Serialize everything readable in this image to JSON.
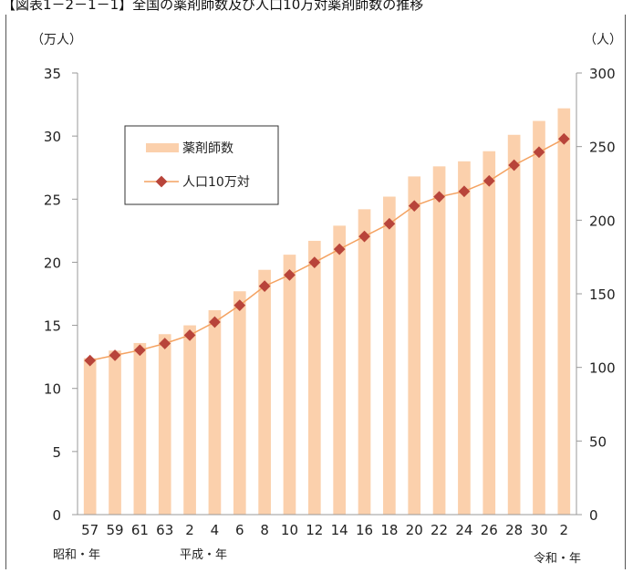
{
  "header": {
    "title": "【図表1－2－1－1】全国の薬剤師数及び人口10万対薬剤師数の推移"
  },
  "chart_data": {
    "type": "bar",
    "y_left_unit": "（万人）",
    "y_right_unit": "（人）",
    "ylim_left": [
      0,
      35
    ],
    "ylim_right": [
      0,
      300
    ],
    "yticks_left": [
      "0",
      "5",
      "10",
      "15",
      "20",
      "25",
      "30",
      "35"
    ],
    "yticks_right": [
      "0",
      "50",
      "100",
      "150",
      "200",
      "250",
      "300"
    ],
    "categories": [
      "57",
      "59",
      "61",
      "63",
      "2",
      "4",
      "6",
      "8",
      "10",
      "12",
      "14",
      "16",
      "18",
      "20",
      "22",
      "24",
      "26",
      "28",
      "30",
      "2"
    ],
    "era_labels": [
      "昭和・年",
      "平成・年",
      "令和・年"
    ],
    "legend_position": "upper-left",
    "series": [
      {
        "name": "薬剤師数",
        "type": "bar",
        "axis": "left",
        "color": "#fbd0ac",
        "values": [
          12.4,
          13.0,
          13.6,
          14.3,
          15.0,
          16.2,
          17.7,
          19.4,
          20.6,
          21.7,
          22.9,
          24.2,
          25.2,
          26.8,
          27.6,
          28.0,
          28.8,
          30.1,
          31.2,
          32.2
        ]
      },
      {
        "name": "人口10万対",
        "type": "line",
        "axis": "right",
        "color": "#f4a261",
        "marker_color": "#b8443a",
        "values": [
          104.7,
          108.2,
          111.7,
          116.2,
          121.9,
          130.8,
          142.2,
          155.2,
          162.8,
          171.3,
          180.3,
          189.0,
          197.6,
          209.7,
          215.9,
          219.6,
          226.7,
          237.4,
          246.2,
          255.2
        ]
      }
    ]
  }
}
